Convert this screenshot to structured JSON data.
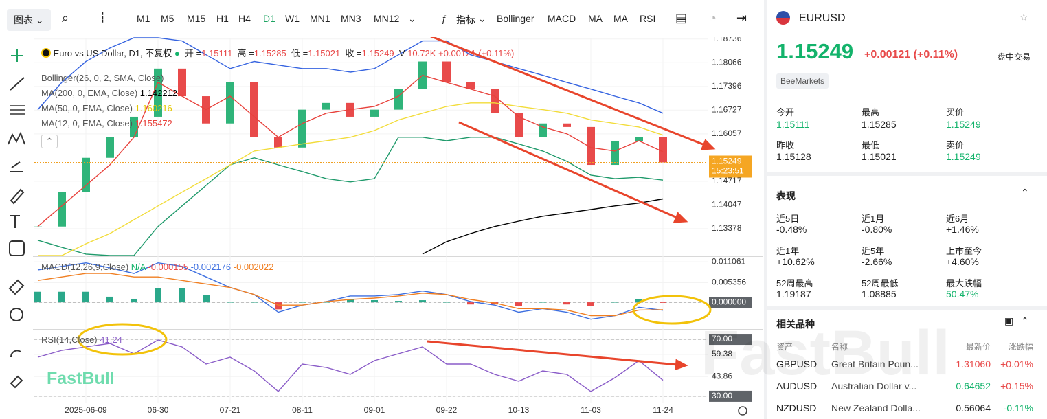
{
  "toolbar": {
    "chart_menu": "图表",
    "intervals": [
      "M1",
      "M5",
      "M15",
      "H1",
      "H4",
      "D1",
      "W1",
      "MN1",
      "MN3",
      "MN12"
    ],
    "selected_interval": "D1",
    "indicator_menu": "指标",
    "indicators": [
      "Bollinger",
      "MACD",
      "MA",
      "MA",
      "RSI"
    ]
  },
  "legend": {
    "title": "Euro vs US Dollar, D1, 不复权",
    "ohlc": [
      {
        "label": "开 =",
        "value": "1.15111"
      },
      {
        "label": "高 =",
        "value": "1.15285"
      },
      {
        "label": "低 =",
        "value": "1.15021"
      },
      {
        "label": "收 =",
        "value": "1.15249"
      }
    ],
    "volume_label": "V",
    "volume": "10.72K",
    "change": "+0.00121 (+0.11%)",
    "bollinger": "Bollinger(26, 0, 2, SMA, Close)"
  },
  "watermark": "FastBull",
  "chart_data": [
    {
      "type": "candlestick",
      "grid": true,
      "categories": [
        null,
        null,
        "2025-06-09",
        null,
        null,
        "06-30",
        null,
        null,
        "07-21",
        null,
        null,
        "08-11",
        null,
        null,
        "09-01",
        null,
        null,
        "09-22",
        null,
        null,
        "10-13",
        null,
        null,
        "11-03",
        null,
        null,
        "11-24"
      ],
      "ylim": [
        1.1262,
        1.1877
      ],
      "yticks": [
        1.18736,
        1.18066,
        1.17396,
        1.16727,
        1.16057,
        1.14717,
        1.14047,
        1.13378
      ],
      "last_price": 1.15249,
      "countdown": "15:23:51",
      "series": [
        {
          "kind": "candle",
          "up_color": "#2fb47a",
          "down_color": "#e84a4a",
          "values": [
            1.1344,
            1.1441,
            1.1538,
            1.1596,
            1.1654,
            1.179,
            1.1712,
            1.1635,
            1.1751,
            1.1596,
            1.1567,
            1.1674,
            1.1693,
            1.1654,
            1.1674,
            1.1732,
            1.181,
            1.1751,
            1.1732,
            1.1664,
            1.1596,
            1.1635,
            1.1625,
            1.1518,
            1.1586,
            1.1596,
            1.15249
          ]
        },
        {
          "kind": "line",
          "color": "#3563e0",
          "values": [
            1.1674,
            1.1751,
            1.181,
            1.1848,
            1.1877,
            1.1877,
            1.1868,
            1.1829,
            1.179,
            1.181,
            1.18,
            1.179,
            1.179,
            1.178,
            1.179,
            1.1829,
            1.1868,
            1.1868,
            1.1829,
            1.181,
            1.179,
            1.1771,
            1.1751,
            1.1732,
            1.1712,
            1.1693,
            1.1664
          ]
        },
        {
          "kind": "line",
          "color": "#1f9a6b",
          "values": [
            1.1305,
            1.1285,
            1.1266,
            1.1262,
            1.1262,
            1.1344,
            1.1402,
            1.146,
            1.1518,
            1.1538,
            1.1518,
            1.1499,
            1.1479,
            1.147,
            1.1479,
            1.1596,
            1.1596,
            1.1586,
            1.1596,
            1.1596,
            1.1577,
            1.1557,
            1.1528,
            1.1489,
            1.1479,
            1.1483,
            1.1475
          ]
        },
        {
          "kind": "line",
          "name": "MA(200, 0, EMA, Close)",
          "legend_value": 1.142212,
          "color": "#000000",
          "values": [
            null,
            null,
            null,
            null,
            null,
            null,
            null,
            null,
            null,
            null,
            null,
            null,
            null,
            null,
            null,
            null,
            1.1266,
            1.1301,
            1.1324,
            1.1344,
            1.1359,
            1.1373,
            1.1382,
            1.1392,
            1.1402,
            1.141,
            1.1422
          ]
        },
        {
          "kind": "line",
          "name": "MA(50, 0, EMA, Close)",
          "legend_value": 1.160216,
          "color": "#f2dc3a",
          "values": [
            1.1262,
            1.1262,
            1.1295,
            1.1324,
            1.1363,
            1.1402,
            1.1441,
            1.1479,
            1.1518,
            1.1557,
            1.1567,
            1.1577,
            1.1586,
            1.1596,
            1.1615,
            1.1645,
            1.1664,
            1.1683,
            1.1693,
            1.1693,
            1.1683,
            1.1674,
            1.1664,
            1.1645,
            1.1635,
            1.1625,
            1.1602
          ]
        },
        {
          "kind": "line",
          "name": "MA(12, 0, EMA, Close)",
          "legend_value": 1.155472,
          "color": "#e8423c",
          "values": [
            1.1344,
            1.1402,
            1.146,
            1.1518,
            1.1596,
            1.1751,
            1.1712,
            1.1674,
            1.1712,
            1.1654,
            1.1596,
            1.1635,
            1.1664,
            1.1674,
            1.1683,
            1.1712,
            1.1771,
            1.1751,
            1.1732,
            1.1712,
            1.1654,
            1.1625,
            1.1606,
            1.1567,
            1.1557,
            1.1586,
            1.1555
          ]
        }
      ]
    },
    {
      "type": "macd",
      "title": "MACD(12,26,9,Close)",
      "status": "N/A",
      "grid": true,
      "ylim": [
        -0.0071,
        0.0122
      ],
      "yticks": [
        0.011061,
        0.005356,
        {
          "value": 0,
          "label": "0.000000"
        }
      ],
      "series": [
        {
          "kind": "histogram",
          "legend_value": -0.000155,
          "color": "#e84a4a",
          "up_color": "#2aa88a",
          "down_color": "#e84a4a",
          "values": [
            0.00288,
            0.00288,
            0.00288,
            0.00153,
            0.00096,
            0.00384,
            0.00384,
            0.00192,
            0,
            0,
            -0.00192,
            0,
            0,
            0.00096,
            0.00058,
            0.00038,
            0.00057,
            0,
            -0.00058,
            -0.00058,
            -0.00096,
            0,
            -0.00058,
            -0.00096,
            0,
            0.00077,
            -0.000155
          ]
        },
        {
          "kind": "line",
          "legend_value": -0.002176,
          "color": "#3d6fe0",
          "values": [
            0.00884,
            0.0098,
            0.01076,
            0.00941,
            0.00788,
            0.01076,
            0.0098,
            0.00692,
            0.00403,
            0.00211,
            -0.00269,
            -0.00077,
            0.00019,
            0.00173,
            0.00173,
            0.00211,
            0.00307,
            0.00211,
            0.00019,
            -0.00077,
            -0.00269,
            -0.00173,
            -0.00269,
            -0.00461,
            -0.00365,
            -0.00134,
            -0.002176
          ]
        },
        {
          "kind": "line",
          "legend_value": -0.002022,
          "color": "#f07f22",
          "values": [
            0.00596,
            0.00692,
            0.00788,
            0.00788,
            0.00692,
            0.00692,
            0.00596,
            0.005,
            0.00403,
            0.00211,
            -0.00077,
            -0.00077,
            0.00019,
            0.00077,
            0.00115,
            0.00173,
            0.0025,
            0.00211,
            0.00077,
            -0.00019,
            -0.00173,
            -0.00173,
            -0.00211,
            -0.00365,
            -0.00365,
            -0.00211,
            -0.002022
          ]
        }
      ]
    },
    {
      "type": "line",
      "title": "RSI(14,Close)",
      "grid": true,
      "ylim": [
        26.1,
        76.3
      ],
      "yticks": [
        {
          "value": 70,
          "label": "70.00"
        },
        59.38,
        43.86,
        {
          "value": 30,
          "label": "30.00"
        }
      ],
      "series": [
        {
          "kind": "line",
          "legend_value": 41.24,
          "color": "#8a5cc8",
          "values": [
            57.47,
            62.29,
            64.7,
            67.11,
            59.88,
            69.52,
            64.7,
            52.65,
            57.47,
            47.83,
            33.37,
            52.65,
            50.24,
            45.42,
            55.06,
            59.88,
            64.7,
            52.65,
            52.65,
            45.42,
            40.6,
            47.83,
            45.42,
            33.37,
            43.01,
            55.06,
            41.24
          ]
        }
      ]
    }
  ],
  "panel": {
    "symbol": "EURUSD",
    "price": "1.15249",
    "change": "+0.00121",
    "change_pct": "(+0.11%)",
    "status": "盘中交易",
    "broker": "BeeMarkets",
    "quote": [
      {
        "label": "今开",
        "value": "1.15111"
      },
      {
        "label": "最高",
        "value": "1.15285"
      },
      {
        "label": "买价",
        "value": "1.15249"
      },
      {
        "label": "昨收",
        "value": "1.15128"
      },
      {
        "label": "最低",
        "value": "1.15021"
      },
      {
        "label": "卖价",
        "value": "1.15249"
      }
    ],
    "performance_title": "表现",
    "performance": [
      {
        "label": "近5日",
        "value": "-0.48%"
      },
      {
        "label": "近1月",
        "value": "-0.80%"
      },
      {
        "label": "近6月",
        "value": "+1.46%"
      },
      {
        "label": "近1年",
        "value": "+10.62%"
      },
      {
        "label": "近5年",
        "value": "-2.66%"
      },
      {
        "label": "上市至今",
        "value": "+4.60%"
      },
      {
        "label": "52周最高",
        "value": "1.19187"
      },
      {
        "label": "52周最低",
        "value": "1.08885"
      },
      {
        "label": "最大跌幅",
        "value": "50.47%"
      }
    ],
    "related_title": "相关品种",
    "related_headers": [
      "资产",
      "名称",
      "最新价",
      "涨跌幅"
    ],
    "related": [
      [
        "GBPUSD",
        "Great Britain Poun...",
        "1.31060",
        "+0.01%"
      ],
      [
        "AUDUSD",
        "Australian Dollar v...",
        "0.64652",
        "+0.15%"
      ],
      [
        "NZDUSD",
        "New Zealand Dolla...",
        "0.56064",
        "-0.11%"
      ]
    ]
  }
}
